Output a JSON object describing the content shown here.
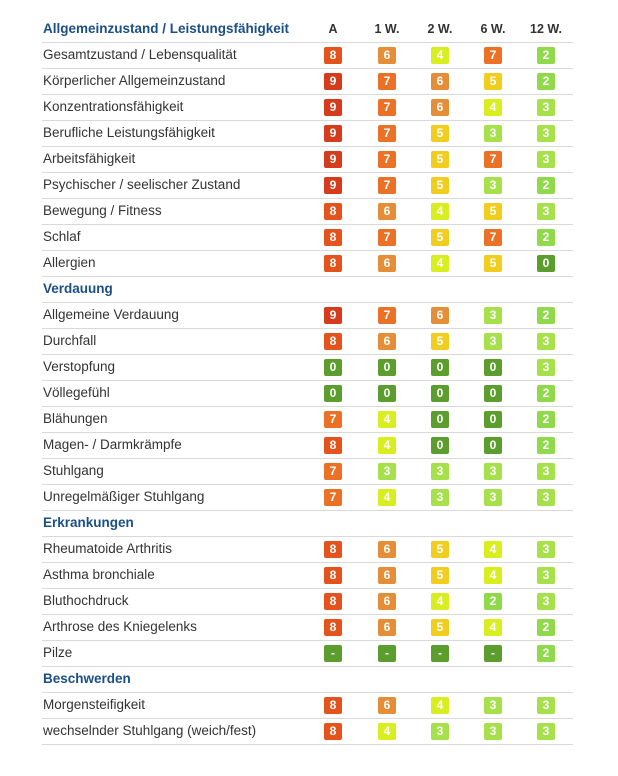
{
  "colors": {
    "0": "#5c9e2d",
    "2": "#8fd94a",
    "3": "#a6e14b",
    "4": "#d8ee1e",
    "5": "#f1cd1e",
    "6": "#e68d38",
    "7": "#ea7125",
    "8": "#e5531d",
    "9": "#d63b1b",
    "-": "#5c9e2d"
  },
  "chart_data": {
    "type": "table",
    "columns": [
      "A",
      "1 W.",
      "2 W.",
      "6 W.",
      "12 W."
    ],
    "sections": [
      {
        "title": "Allgemeinzustand / Leistungsfähigkeit",
        "rows": [
          {
            "label": "Gesamtzustand / Lebensqualität",
            "values": [
              "8",
              "6",
              "4",
              "7",
              "2"
            ]
          },
          {
            "label": "Körperlicher Allgemeinzustand",
            "values": [
              "9",
              "7",
              "6",
              "5",
              "2"
            ]
          },
          {
            "label": "Konzentrationsfähigkeit",
            "values": [
              "9",
              "7",
              "6",
              "4",
              "3"
            ]
          },
          {
            "label": "Berufliche Leistungsfähigkeit",
            "values": [
              "9",
              "7",
              "5",
              "3",
              "3"
            ]
          },
          {
            "label": "Arbeitsfähigkeit",
            "values": [
              "9",
              "7",
              "5",
              "7",
              "3"
            ]
          },
          {
            "label": "Psychischer / seelischer Zustand",
            "values": [
              "9",
              "7",
              "5",
              "3",
              "2"
            ]
          },
          {
            "label": "Bewegung / Fitness",
            "values": [
              "8",
              "6",
              "4",
              "5",
              "3"
            ]
          },
          {
            "label": "Schlaf",
            "values": [
              "8",
              "7",
              "5",
              "7",
              "2"
            ]
          },
          {
            "label": "Allergien",
            "values": [
              "8",
              "6",
              "4",
              "5",
              "0"
            ]
          }
        ]
      },
      {
        "title": "Verdauung",
        "rows": [
          {
            "label": "Allgemeine Verdauung",
            "values": [
              "9",
              "7",
              "6",
              "3",
              "2"
            ]
          },
          {
            "label": "Durchfall",
            "values": [
              "8",
              "6",
              "5",
              "3",
              "3"
            ]
          },
          {
            "label": "Verstopfung",
            "values": [
              "0",
              "0",
              "0",
              "0",
              "3"
            ]
          },
          {
            "label": "Völlegefühl",
            "values": [
              "0",
              "0",
              "0",
              "0",
              "2"
            ]
          },
          {
            "label": "Blähungen",
            "values": [
              "7",
              "4",
              "0",
              "0",
              "2"
            ]
          },
          {
            "label": "Magen- / Darmkrämpfe",
            "values": [
              "8",
              "4",
              "0",
              "0",
              "2"
            ]
          },
          {
            "label": "Stuhlgang",
            "values": [
              "7",
              "3",
              "3",
              "3",
              "3"
            ]
          },
          {
            "label": "Unregelmäßiger Stuhlgang",
            "values": [
              "7",
              "4",
              "3",
              "3",
              "3"
            ]
          }
        ]
      },
      {
        "title": "Erkrankungen",
        "rows": [
          {
            "label": "Rheumatoide Arthritis",
            "values": [
              "8",
              "6",
              "5",
              "4",
              "3"
            ]
          },
          {
            "label": "Asthma bronchiale",
            "values": [
              "8",
              "6",
              "5",
              "4",
              "3"
            ]
          },
          {
            "label": "Bluthochdruck",
            "values": [
              "8",
              "6",
              "4",
              "2",
              "3"
            ]
          },
          {
            "label": "Arthrose des Kniegelenks",
            "values": [
              "8",
              "6",
              "5",
              "4",
              "2"
            ]
          },
          {
            "label": "Pilze",
            "values": [
              "-",
              "-",
              "-",
              "-",
              "2"
            ]
          }
        ]
      },
      {
        "title": "Beschwerden",
        "rows": [
          {
            "label": "Morgensteifigkeit",
            "values": [
              "8",
              "6",
              "4",
              "3",
              "3"
            ]
          },
          {
            "label": "wechselnder Stuhlgang (weich/fest)",
            "values": [
              "8",
              "4",
              "3",
              "3",
              "3"
            ]
          }
        ]
      }
    ]
  }
}
